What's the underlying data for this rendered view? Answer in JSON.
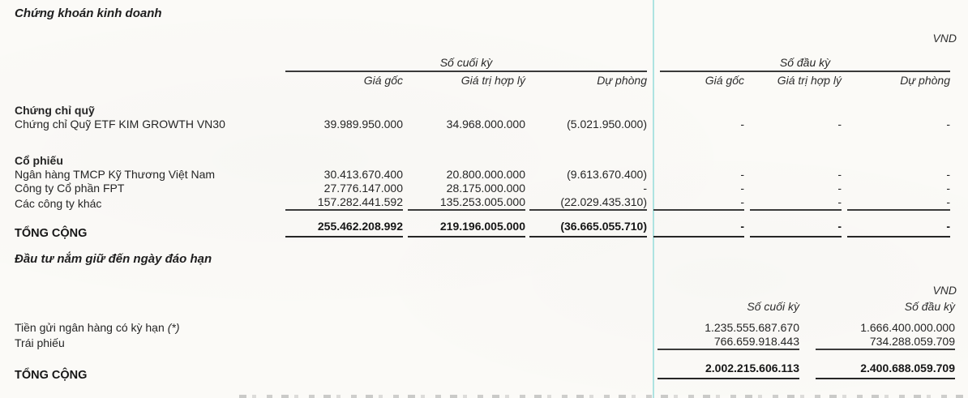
{
  "section1": {
    "title": "Chứng khoán kinh doanh",
    "currency": "VND",
    "column_groups": [
      "Số cuối kỳ",
      "Số đầu kỳ"
    ],
    "sub_headers": [
      "Giá gốc",
      "Giá trị hợp lý",
      "Dự phòng"
    ],
    "groups": [
      {
        "heading": "Chứng chỉ quỹ",
        "rows": [
          {
            "label": "Chứng chỉ Quỹ ETF KIM GROWTH VN30",
            "end": [
              "39.989.950.000",
              "34.968.000.000",
              "(5.021.950.000)"
            ],
            "begin": [
              "-",
              "-",
              "-"
            ]
          }
        ]
      },
      {
        "heading": "Cổ phiếu",
        "rows": [
          {
            "label": "Ngân hàng TMCP Kỹ Thương Việt Nam",
            "end": [
              "30.413.670.400",
              "20.800.000.000",
              "(9.613.670.400)"
            ],
            "begin": [
              "-",
              "-",
              "-"
            ]
          },
          {
            "label": "Công ty Cổ phần FPT",
            "end": [
              "27.776.147.000",
              "28.175.000.000",
              "-"
            ],
            "begin": [
              "-",
              "-",
              "-"
            ]
          },
          {
            "label": "Các công ty khác",
            "end": [
              "157.282.441.592",
              "135.253.005.000",
              "(22.029.435.310)"
            ],
            "begin": [
              "-",
              "-",
              "-"
            ]
          }
        ]
      }
    ],
    "total": {
      "label": "TỔNG CỘNG",
      "end": [
        "255.462.208.992",
        "219.196.005.000",
        "(36.665.055.710)"
      ],
      "begin": [
        "-",
        "-",
        "-"
      ]
    }
  },
  "section2": {
    "title": "Đầu tư nắm giữ đến ngày đáo hạn",
    "currency": "VND",
    "headers": [
      "Số cuối kỳ",
      "Số đầu kỳ"
    ],
    "rows": [
      {
        "label": "Tiền gửi ngân hàng có kỳ hạn",
        "label_suffix": "(*)",
        "end": "1.235.555.687.670",
        "begin": "1.666.400.000.000"
      },
      {
        "label": "Trái phiếu",
        "label_suffix": "",
        "end": "766.659.918.443",
        "begin": "734.288.059.709"
      }
    ],
    "total": {
      "label": "TỔNG CỘNG",
      "end": "2.002.215.606.113",
      "begin": "2.400.688.059.709"
    }
  }
}
